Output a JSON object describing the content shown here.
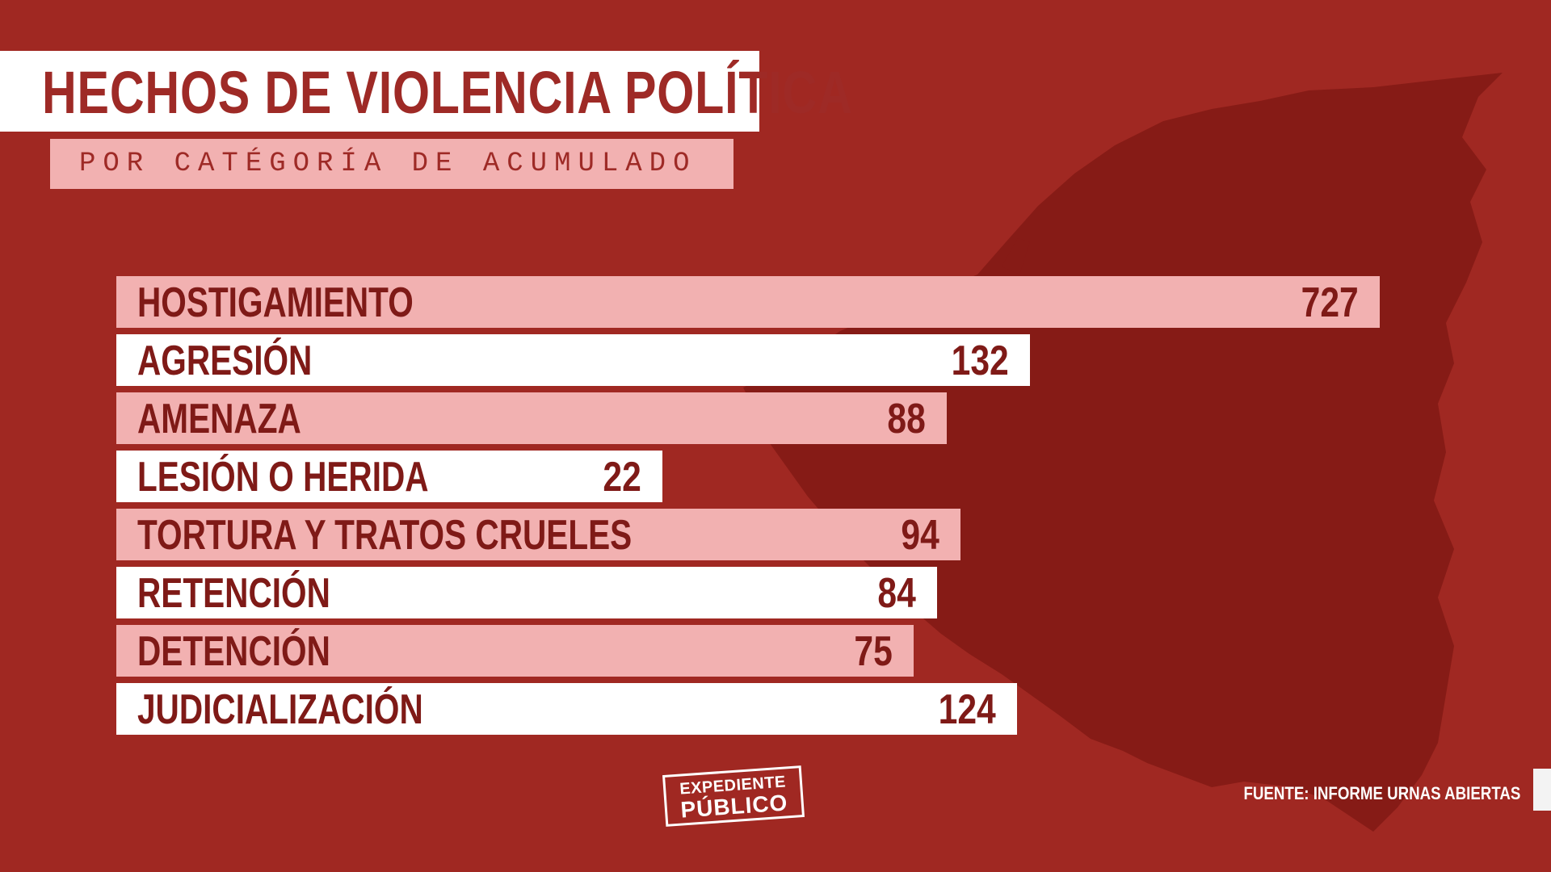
{
  "title": "HECHOS DE VIOLENCIA POLÍTICA",
  "subtitle": "POR CATÉGORÍA DE ACUMULADO",
  "source": "FUENTE: INFORME URNAS ABIERTAS",
  "logo": {
    "line1": "EXPEDIENTE",
    "line2": "PÚBLICO"
  },
  "colors": {
    "background": "#a02822",
    "map": "#861b16",
    "bar_pink": "#f2b1b1",
    "bar_white": "#ffffff",
    "text_dark": "#7f1a17"
  },
  "chart_data": {
    "type": "bar",
    "orientation": "horizontal",
    "categories": [
      "HOSTIGAMIENTO",
      "AGRESIÓN",
      "AMENAZA",
      "LESIÓN O HERIDA",
      "TORTURA Y TRATOS CRUELES",
      "RETENCIÓN",
      "DETENCIÓN",
      "JUDICIALIZACIÓN"
    ],
    "values": [
      727,
      132,
      88,
      22,
      94,
      84,
      75,
      124
    ],
    "bar_colors": [
      "#f2b1b1",
      "#ffffff",
      "#f2b1b1",
      "#ffffff",
      "#f2b1b1",
      "#ffffff",
      "#f2b1b1",
      "#ffffff"
    ],
    "title": "HECHOS DE VIOLENCIA POLÍTICA",
    "subtitle": "POR CATÉGORÍA DE ACUMULADO",
    "data_labels": true,
    "grid": false,
    "legend": "none"
  }
}
